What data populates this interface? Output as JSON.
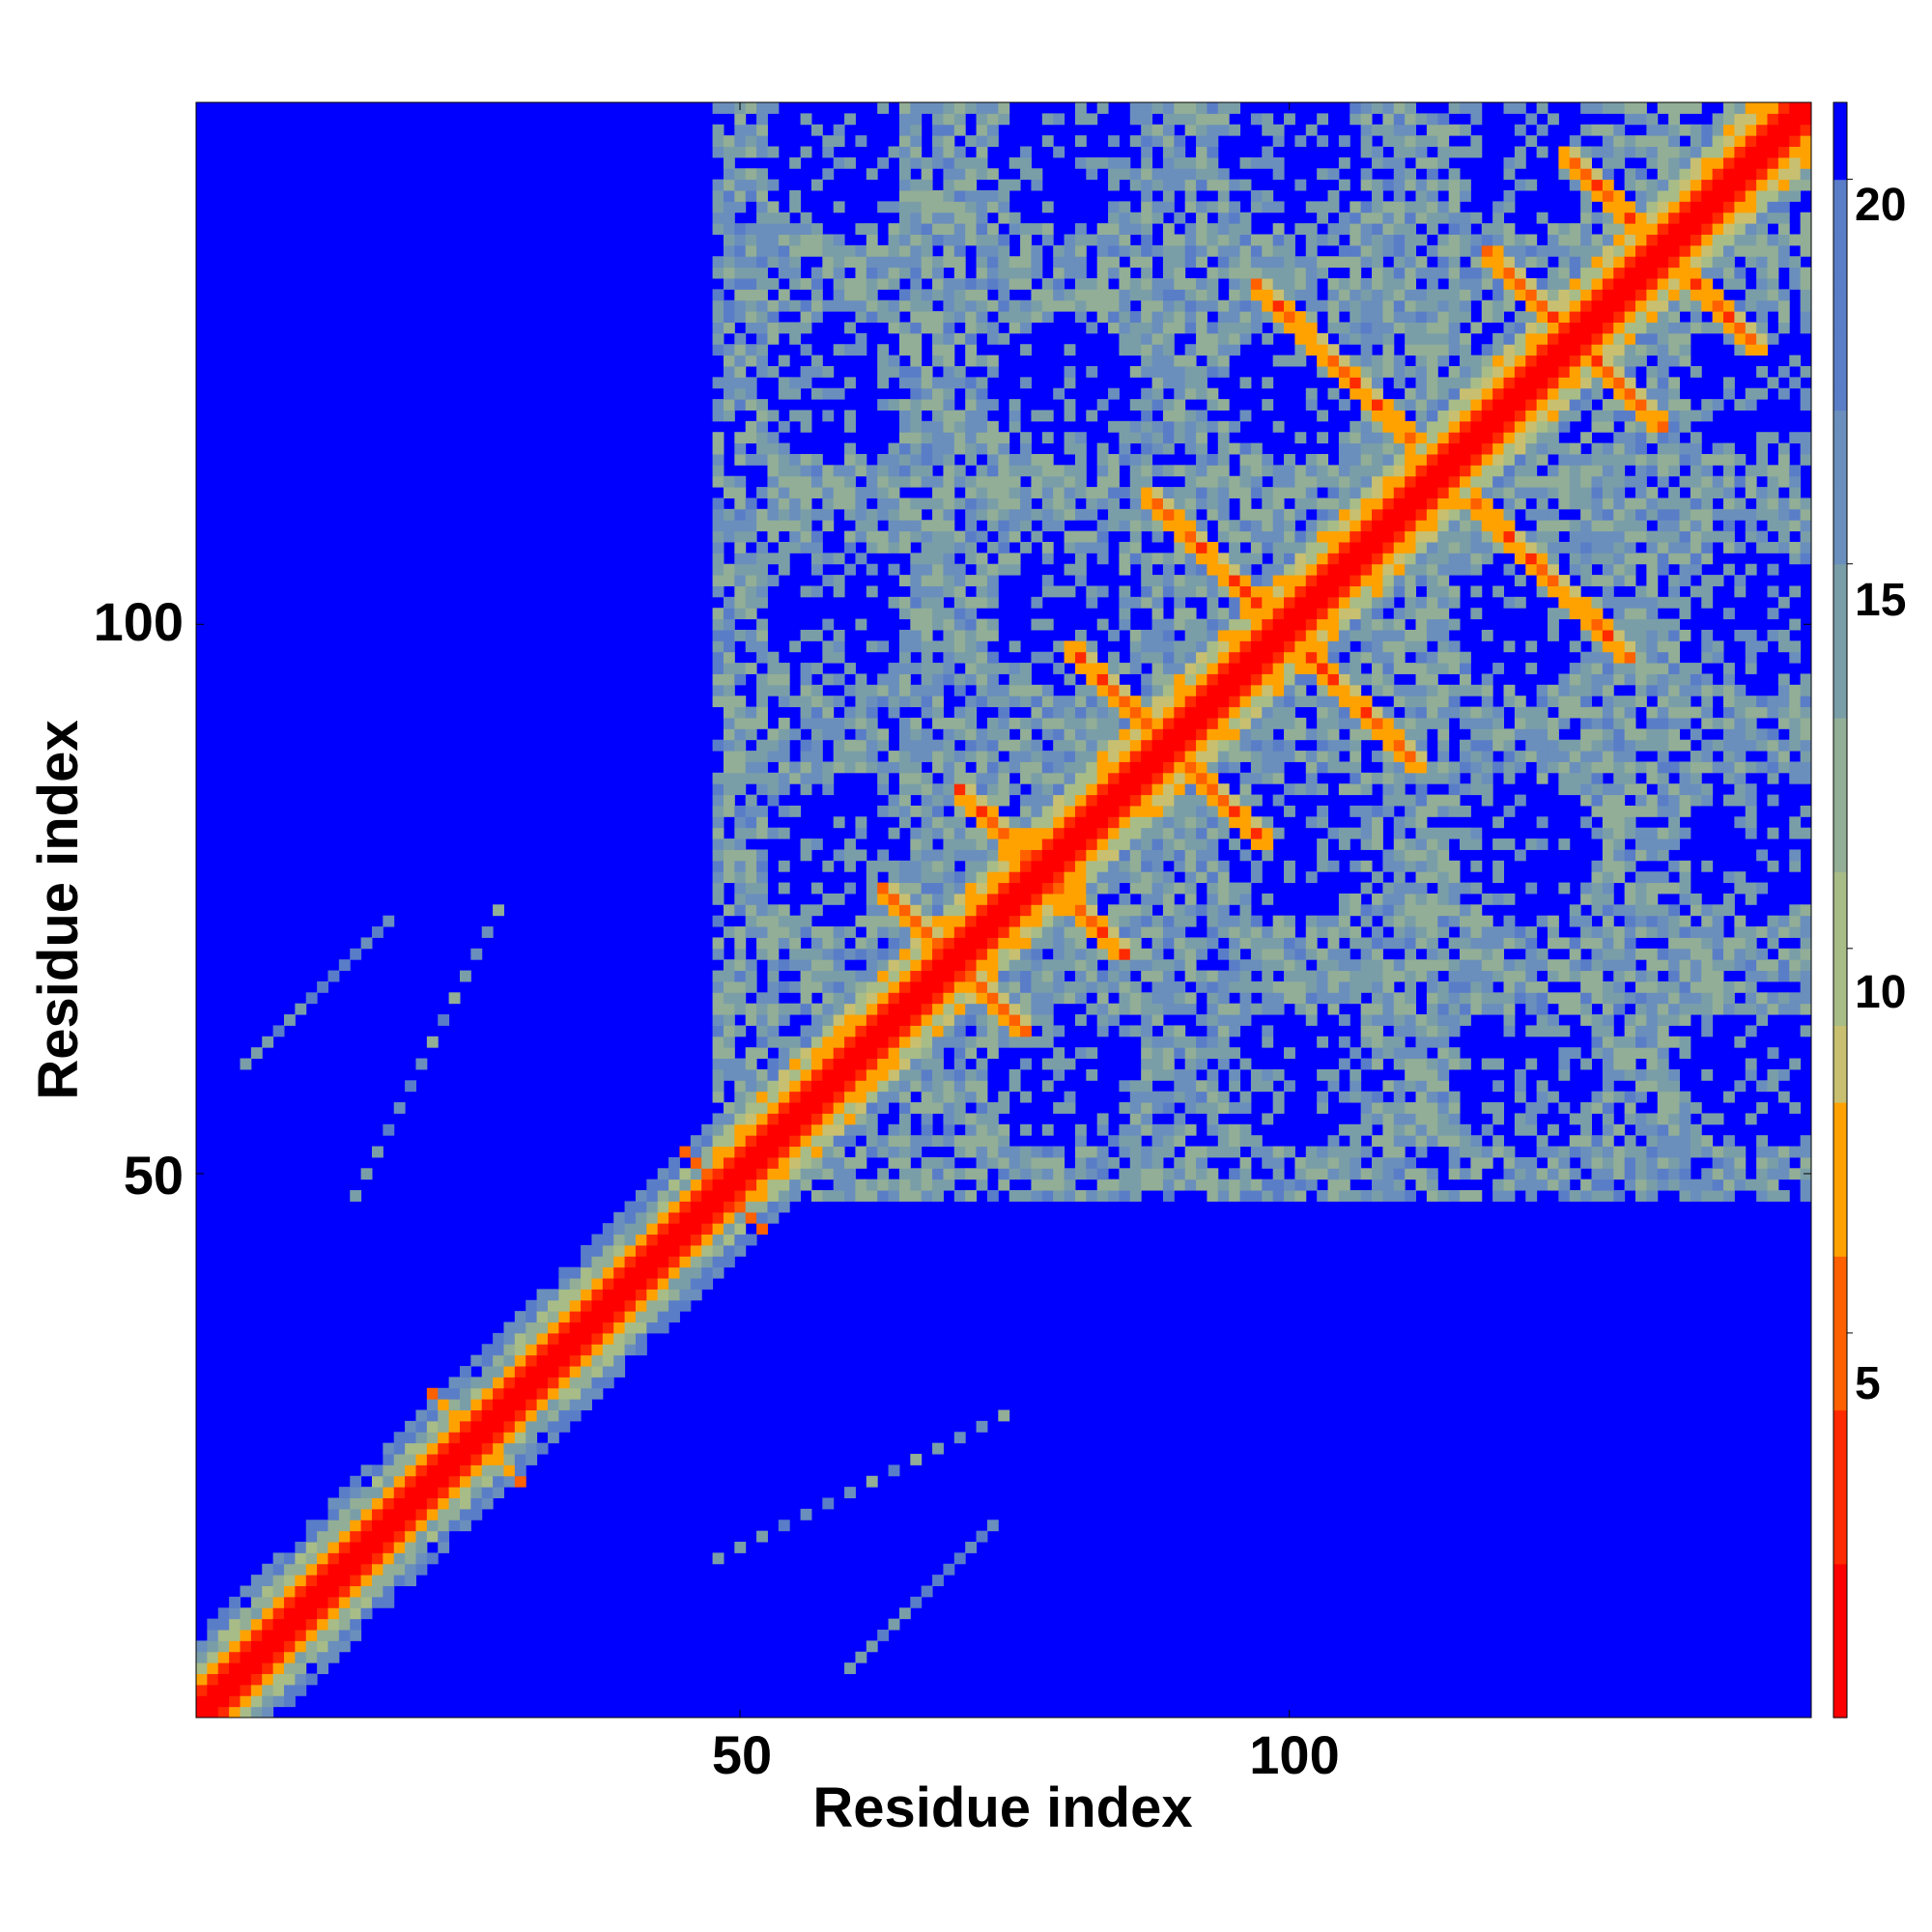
{
  "chart_data": {
    "type": "heatmap",
    "title": "",
    "xlabel": "Residue index",
    "ylabel": "Residue index",
    "n_residues": 147,
    "xlim": [
      1,
      147
    ],
    "ylim": [
      1,
      147
    ],
    "x_ticks": [
      "50",
      "100"
    ],
    "x_tick_values": [
      50,
      100
    ],
    "y_ticks": [
      "50",
      "100"
    ],
    "y_tick_values": [
      50,
      100
    ],
    "colorbar": {
      "ticks": [
        "5",
        "10",
        "15",
        "20"
      ],
      "tick_values": [
        5,
        10,
        15,
        20
      ],
      "range": [
        0,
        21
      ],
      "cutoff_value": 20
    },
    "colorscale": [
      {
        "max": 2,
        "color": "#ff0000"
      },
      {
        "max": 4,
        "color": "#ff2a00"
      },
      {
        "max": 6,
        "color": "#ff6000"
      },
      {
        "max": 8,
        "color": "#ffa200"
      },
      {
        "max": 9,
        "color": "#c8c070"
      },
      {
        "max": 11,
        "color": "#a8bc88"
      },
      {
        "max": 13,
        "color": "#92ae96"
      },
      {
        "max": 15,
        "color": "#7a9ea8"
      },
      {
        "max": 17,
        "color": "#6a8fbc"
      },
      {
        "max": 20,
        "color": "#5a7dc8"
      },
      {
        "max": 99,
        "color": "#0000ff"
      }
    ],
    "structure": {
      "diagonal_band_width": 4,
      "helix_block_start": 48,
      "beta_hairpin_pairs": [
        [
          22,
          30
        ],
        [
          45,
          52
        ]
      ],
      "off_diagonal_contacts": [
        {
          "i": 63,
          "j": 76,
          "length": 8,
          "direction": "antiparallel"
        },
        {
          "i": 70,
          "j": 85,
          "length": 10,
          "direction": "antiparallel"
        },
        {
          "i": 80,
          "j": 98,
          "length": 12,
          "direction": "antiparallel"
        },
        {
          "i": 87,
          "j": 112,
          "length": 14,
          "direction": "antiparallel"
        },
        {
          "i": 97,
          "j": 131,
          "length": 15,
          "direction": "antiparallel"
        },
        {
          "i": 118,
          "j": 134,
          "length": 10,
          "direction": "antiparallel"
        },
        {
          "i": 125,
          "j": 143,
          "length": 8,
          "direction": "antiparallel"
        }
      ]
    }
  },
  "colors": {
    "background": "#ffffff",
    "no_contact": "#0000ff",
    "contact_close": "#ff0000",
    "contact_mid": "#ffa200",
    "contact_far": "#5a7dc8"
  }
}
